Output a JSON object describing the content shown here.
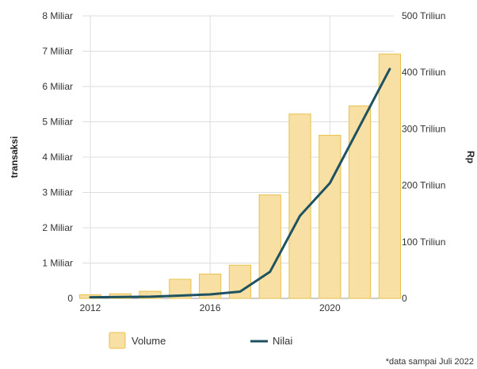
{
  "chart_data": {
    "type": "bar",
    "x": [
      2012,
      2013,
      2014,
      2015,
      2016,
      2017,
      2018,
      2019,
      2020,
      2021,
      2022
    ],
    "x_ticks": [
      {
        "value": 2012,
        "label": "2012"
      },
      {
        "value": 2016,
        "label": "2016"
      },
      {
        "value": 2020,
        "label": "2020"
      }
    ],
    "ylabel": "transaksi",
    "y2label": "Rp",
    "ylim": [
      0,
      8000000000
    ],
    "y2lim": [
      0,
      500
    ],
    "y_ticks": [
      {
        "value": 0,
        "label": "0"
      },
      {
        "value": 1000000000,
        "label": "1 Miliar"
      },
      {
        "value": 2000000000,
        "label": "2 Miliar"
      },
      {
        "value": 3000000000,
        "label": "3 Miliar"
      },
      {
        "value": 4000000000,
        "label": "4 Miliar"
      },
      {
        "value": 5000000000,
        "label": "5 Miliar"
      },
      {
        "value": 6000000000,
        "label": "6 Miliar"
      },
      {
        "value": 7000000000,
        "label": "7 Miliar"
      },
      {
        "value": 8000000000,
        "label": "8 Miliar"
      }
    ],
    "y2_ticks": [
      {
        "value": 0,
        "label": "0"
      },
      {
        "value": 100,
        "label": "100 Triliun"
      },
      {
        "value": 200,
        "label": "200 Triliun"
      },
      {
        "value": 300,
        "label": "300 Triliun"
      },
      {
        "value": 400,
        "label": "400 Triliun"
      },
      {
        "value": 500,
        "label": "500 Triliun"
      }
    ],
    "grid": true,
    "legend_position": "bottom",
    "series": [
      {
        "name": "Volume",
        "type": "bar",
        "axis": "left",
        "color": "#f8e0a4",
        "border_color": "#e8c04a",
        "values": [
          100000000,
          130000000,
          200000000,
          540000000,
          690000000,
          940000000,
          2930000000,
          5220000000,
          4620000000,
          5450000000,
          6920000000
        ]
      },
      {
        "name": "Nilai",
        "type": "line",
        "axis": "right",
        "color": "#1e5260",
        "values": [
          2,
          2.5,
          3,
          5,
          7,
          12,
          47,
          146,
          204,
          305,
          406
        ]
      }
    ],
    "note": "*data sampai Juli 2022"
  }
}
